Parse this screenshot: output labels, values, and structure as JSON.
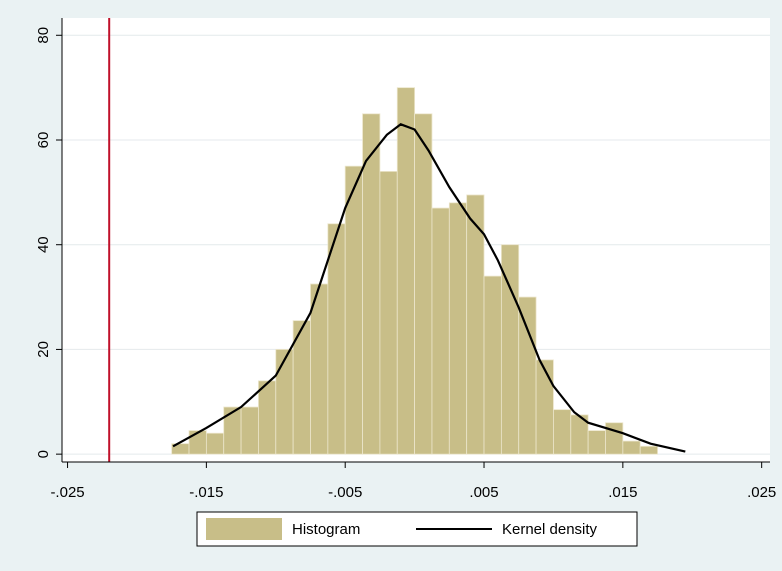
{
  "chart_data": {
    "type": "histogram",
    "bins": [
      -0.0175,
      -0.01625,
      -0.015,
      -0.01375,
      -0.0125,
      -0.01125,
      -0.01,
      -0.00875,
      -0.0075,
      -0.00625,
      -0.005,
      -0.00375,
      -0.0025,
      -0.00125,
      0,
      0.00125,
      0.0025,
      0.00375,
      0.005,
      0.00625,
      0.0075,
      0.00875,
      0.01,
      0.01125,
      0.0125,
      0.01375,
      0.015,
      0.01625,
      0.0175
    ],
    "series": [
      {
        "name": "Histogram",
        "type": "histogram",
        "color": "#c8be88",
        "values": [
          2,
          4.5,
          4,
          9,
          9,
          14,
          20,
          25.5,
          32.5,
          44,
          55,
          65,
          54,
          70,
          65,
          47,
          48,
          49.5,
          34,
          40,
          30,
          18,
          8.5,
          7.5,
          4.5,
          6,
          2.5,
          1.5
        ]
      },
      {
        "name": "Kernel density",
        "type": "line",
        "color": "#000000",
        "x": [
          -0.0174,
          -0.015,
          -0.0125,
          -0.01,
          -0.0075,
          -0.005,
          -0.0035,
          -0.002,
          -0.001,
          0,
          0.001,
          0.0025,
          0.004,
          0.005,
          0.006,
          0.0075,
          0.009,
          0.01,
          0.0115,
          0.0125,
          0.015,
          0.017,
          0.0195
        ],
        "values": [
          1.5,
          5,
          9,
          15,
          27,
          47,
          56,
          61,
          63,
          62,
          58,
          51,
          45,
          42,
          37,
          28,
          18,
          13,
          8,
          6,
          4,
          2,
          0.5
        ]
      }
    ],
    "reference_line": {
      "value": -0.022,
      "color": "#c0102a"
    },
    "xlim": [
      -0.0254,
      0.0256
    ],
    "ylim": [
      -1.5,
      83.3
    ],
    "xticks": [
      {
        "value": -0.025,
        "label": "-.025"
      },
      {
        "value": -0.015,
        "label": "-.015"
      },
      {
        "value": -0.005,
        "label": "-.005"
      },
      {
        "value": 0.005,
        "label": ".005"
      },
      {
        "value": 0.015,
        "label": ".015"
      },
      {
        "value": 0.025,
        "label": ".025"
      }
    ],
    "yticks": [
      0,
      20,
      40,
      60,
      80
    ],
    "grid": true
  }
}
